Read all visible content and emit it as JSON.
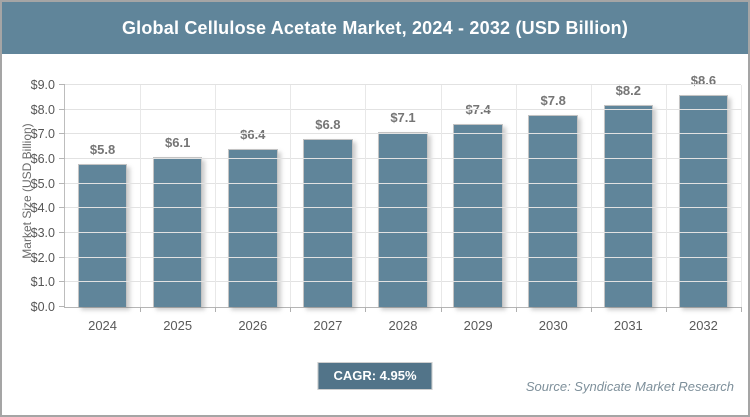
{
  "header": {
    "title": "Global Cellulose Acetate Market, 2024 - 2032 (USD Billion)",
    "background": "#60859a",
    "text_color": "#ffffff"
  },
  "chart_data": {
    "type": "bar",
    "title": "Global Cellulose Acetate Market, 2024 - 2032 (USD Billion)",
    "categories": [
      "2024",
      "2025",
      "2026",
      "2027",
      "2028",
      "2029",
      "2030",
      "2031",
      "2032"
    ],
    "values": [
      5.8,
      6.1,
      6.4,
      6.8,
      7.1,
      7.4,
      7.8,
      8.2,
      8.6
    ],
    "value_labels": [
      "$5.8",
      "$6.1",
      "$6.4",
      "$6.8",
      "$7.1",
      "$7.4",
      "$7.8",
      "$8.2",
      "$8.6"
    ],
    "xlabel": "",
    "ylabel": "Market Size (USD Billion)",
    "ylim": [
      0,
      9
    ],
    "ytick_step": 1,
    "ytick_labels": [
      "$0.0",
      "$1.0",
      "$2.0",
      "$3.0",
      "$4.0",
      "$5.0",
      "$6.0",
      "$7.0",
      "$8.0",
      "$9.0"
    ],
    "grid": true,
    "legend": "none",
    "bar_color": "#60859a"
  },
  "footer": {
    "cagr_label": "CAGR: 4.95%",
    "badge_color": "#527489",
    "source": "Source: Syndicate Market Research"
  }
}
